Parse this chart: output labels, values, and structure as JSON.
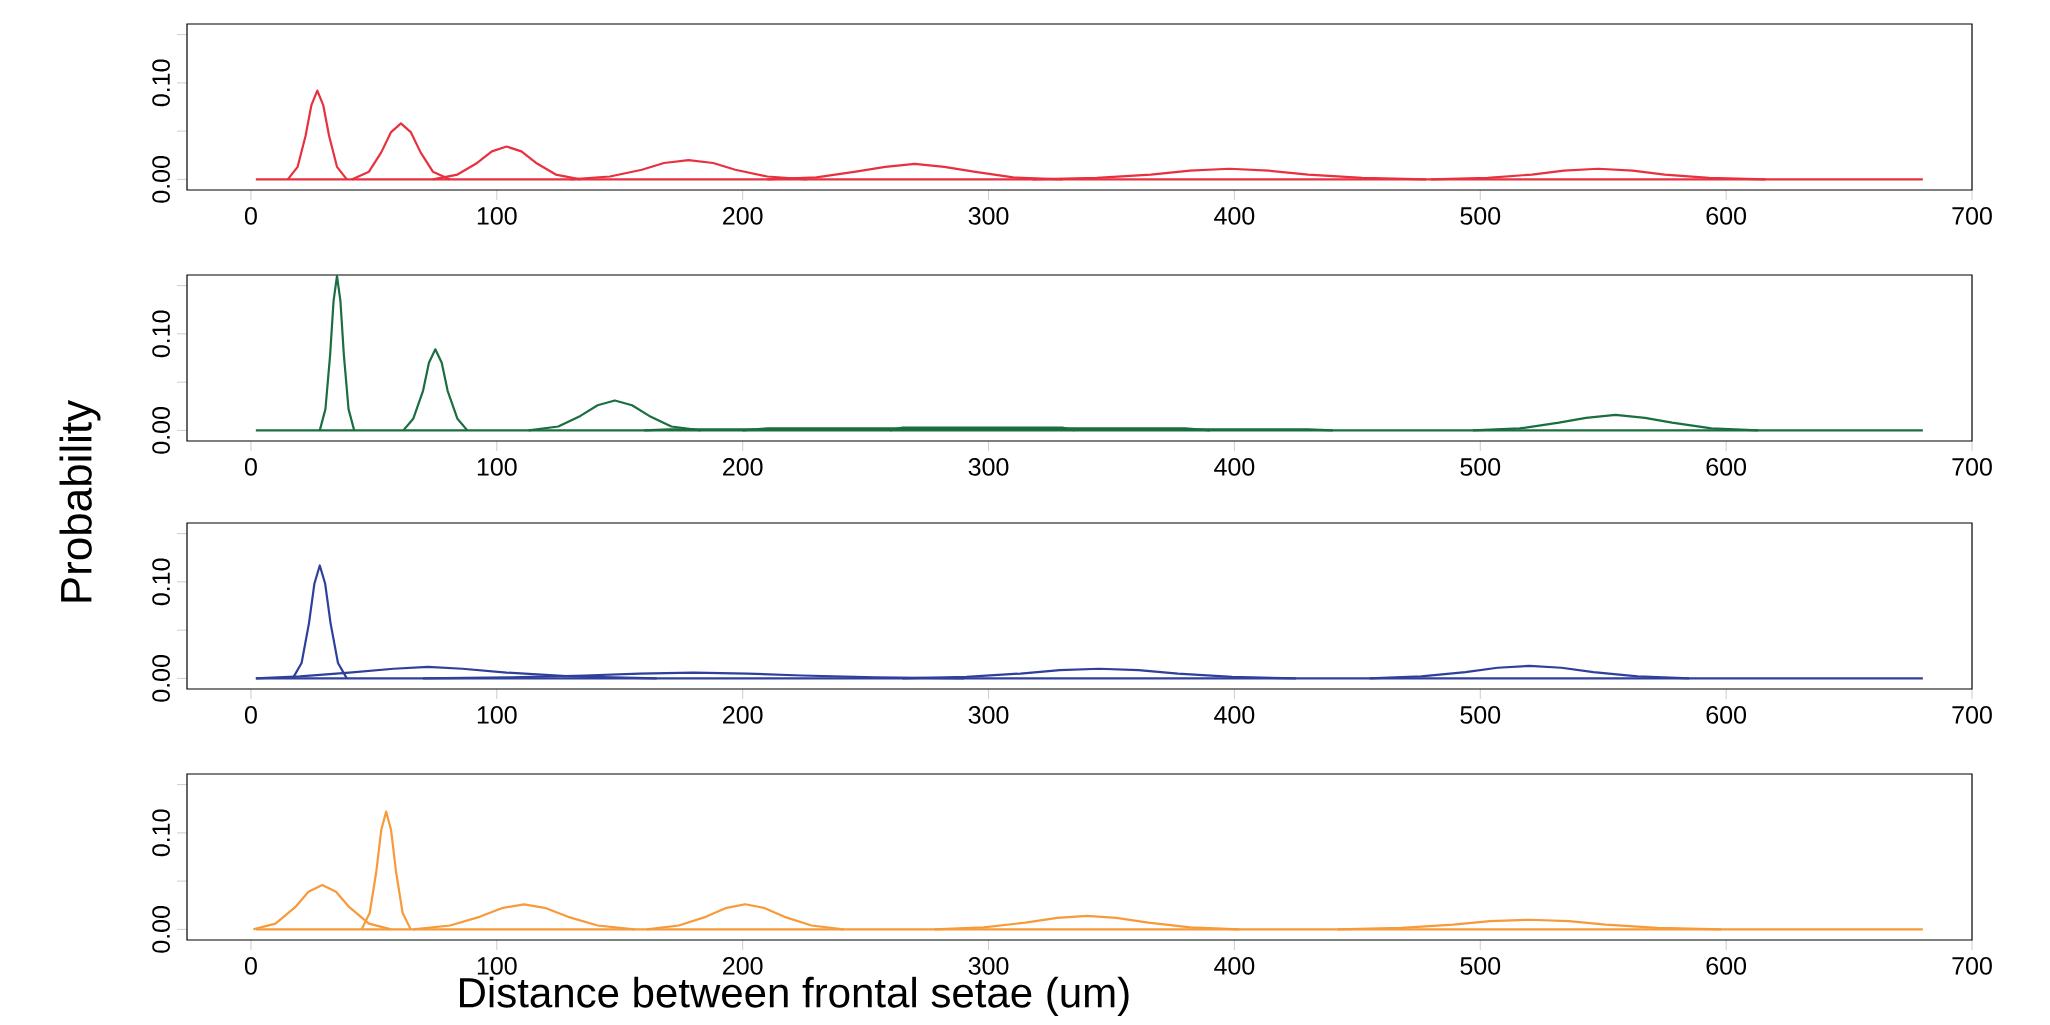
{
  "chart_data": [
    {
      "type": "line",
      "ylabel": "Probability",
      "xlim": [
        -26,
        700
      ],
      "ylim": [
        -0.011,
        0.161
      ],
      "xticks": [
        0,
        100,
        200,
        300,
        400,
        500,
        600,
        700
      ],
      "yticks": [
        {
          "value": 0,
          "label": "0.00"
        },
        {
          "value": 0.05,
          "label": null
        },
        {
          "value": 0.1,
          "label": "0.10"
        },
        {
          "value": 0.15,
          "label": null
        }
      ],
      "series": [
        {
          "color": "#e8303f",
          "x": [
            2,
            680
          ],
          "values": [
            0,
            0
          ]
        },
        {
          "color": "#e8303f",
          "x": [
            15,
            19,
            22.2,
            24.6,
            27,
            29.4,
            31.8,
            35,
            39
          ],
          "values": [
            0,
            0.013,
            0.045,
            0.077,
            0.092,
            0.077,
            0.045,
            0.013,
            0
          ]
        },
        {
          "color": "#e8303f",
          "x": [
            41,
            48,
            53,
            57,
            61,
            65,
            69,
            74,
            81
          ],
          "values": [
            0,
            0.008,
            0.028,
            0.049,
            0.058,
            0.049,
            0.028,
            0.008,
            0
          ]
        },
        {
          "color": "#e8303f",
          "x": [
            74,
            84,
            92,
            98,
            104,
            110,
            116,
            124,
            134
          ],
          "values": [
            0,
            0.005,
            0.017,
            0.029,
            0.034,
            0.029,
            0.017,
            0.005,
            0
          ]
        },
        {
          "color": "#e8303f",
          "x": [
            130,
            146,
            159,
            168,
            178,
            188,
            197,
            210,
            226
          ],
          "values": [
            0,
            0.003,
            0.01,
            0.017,
            0.02,
            0.017,
            0.01,
            0.003,
            0
          ]
        },
        {
          "color": "#e8303f",
          "x": [
            210,
            230,
            246,
            258,
            270,
            282,
            294,
            310,
            330
          ],
          "values": [
            0,
            0.002,
            0.008,
            0.013,
            0.016,
            0.013,
            0.008,
            0.002,
            0
          ]
        },
        {
          "color": "#e8303f",
          "x": [
            318,
            344,
            366,
            382,
            398,
            414,
            430,
            452,
            478
          ],
          "values": [
            0,
            0.0015,
            0.005,
            0.009,
            0.011,
            0.009,
            0.005,
            0.0015,
            0
          ]
        },
        {
          "color": "#e8303f",
          "x": [
            480,
            503,
            521,
            534,
            548,
            562,
            575,
            593,
            616
          ],
          "values": [
            0,
            0.0015,
            0.005,
            0.009,
            0.011,
            0.009,
            0.005,
            0.0015,
            0
          ]
        }
      ]
    },
    {
      "type": "line",
      "xlim": [
        -26,
        700
      ],
      "ylim": [
        -0.011,
        0.161
      ],
      "xticks": [
        0,
        100,
        200,
        300,
        400,
        500,
        600,
        700
      ],
      "yticks": [
        {
          "value": 0,
          "label": "0.00"
        },
        {
          "value": 0.05,
          "label": null
        },
        {
          "value": 0.1,
          "label": "0.10"
        },
        {
          "value": 0.15,
          "label": null
        }
      ],
      "series": [
        {
          "color": "#1a6e3f",
          "x": [
            2,
            680
          ],
          "values": [
            0,
            0
          ]
        },
        {
          "color": "#1a6e3f",
          "x": [
            28,
            30.3,
            32.2,
            33.6,
            35,
            36.4,
            37.8,
            39.7,
            42
          ],
          "values": [
            0,
            0.022,
            0.078,
            0.134,
            0.16,
            0.134,
            0.078,
            0.022,
            0
          ]
        },
        {
          "color": "#1a6e3f",
          "x": [
            62,
            66,
            70,
            72.4,
            75,
            77.6,
            80,
            84,
            88
          ],
          "values": [
            0,
            0.012,
            0.041,
            0.07,
            0.084,
            0.07,
            0.041,
            0.012,
            0
          ]
        },
        {
          "color": "#1a6e3f",
          "x": [
            113,
            125,
            134,
            141,
            148,
            155,
            162,
            171,
            183
          ],
          "values": [
            0,
            0.004,
            0.015,
            0.026,
            0.031,
            0.026,
            0.015,
            0.004,
            0
          ]
        },
        {
          "color": "#1a6e3f",
          "x": [
            160,
            170,
            430,
            440
          ],
          "values": [
            0,
            0.001,
            0.001,
            0
          ]
        },
        {
          "color": "#1a6e3f",
          "x": [
            200,
            210,
            380,
            390
          ],
          "values": [
            0,
            0.002,
            0.002,
            0
          ]
        },
        {
          "color": "#1a6e3f",
          "x": [
            260,
            265,
            330,
            335
          ],
          "values": [
            0,
            0.003,
            0.003,
            0
          ]
        },
        {
          "color": "#1a6e3f",
          "x": [
            497,
            516,
            532,
            543,
            555,
            567,
            578,
            594,
            613
          ],
          "values": [
            0,
            0.002,
            0.008,
            0.013,
            0.016,
            0.013,
            0.008,
            0.002,
            0
          ]
        }
      ]
    },
    {
      "type": "line",
      "xlim": [
        -26,
        700
      ],
      "ylim": [
        -0.011,
        0.161
      ],
      "xticks": [
        0,
        100,
        200,
        300,
        400,
        500,
        600,
        700
      ],
      "yticks": [
        {
          "value": 0,
          "label": "0.00"
        },
        {
          "value": 0.05,
          "label": null
        },
        {
          "value": 0.1,
          "label": "0.10"
        },
        {
          "value": 0.15,
          "label": null
        }
      ],
      "series": [
        {
          "color": "#2e3f9c",
          "x": [
            2,
            680
          ],
          "values": [
            0,
            0
          ]
        },
        {
          "color": "#2e3f9c",
          "x": [
            17,
            20.6,
            23.6,
            25.8,
            28,
            30.2,
            32.4,
            35.4,
            39
          ],
          "values": [
            0,
            0.016,
            0.057,
            0.098,
            0.117,
            0.098,
            0.057,
            0.016,
            0
          ]
        },
        {
          "color": "#2e3f9c",
          "x": [
            2,
            20,
            40,
            58,
            72,
            86,
            104,
            130,
            165
          ],
          "values": [
            0,
            0.002,
            0.006,
            0.01,
            0.012,
            0.01,
            0.006,
            0.002,
            0
          ]
        },
        {
          "color": "#2e3f9c",
          "x": [
            70,
            106,
            136,
            158,
            180,
            202,
            224,
            254,
            290
          ],
          "values": [
            0,
            0.001,
            0.003,
            0.005,
            0.006,
            0.005,
            0.003,
            0.001,
            0
          ]
        },
        {
          "color": "#2e3f9c",
          "x": [
            265,
            291,
            313,
            329,
            345,
            361,
            377,
            399,
            425
          ],
          "values": [
            0,
            0.0015,
            0.005,
            0.0085,
            0.01,
            0.0085,
            0.005,
            0.0015,
            0
          ]
        },
        {
          "color": "#2e3f9c",
          "x": [
            455,
            476,
            494,
            507,
            520,
            533,
            546,
            564,
            585
          ],
          "values": [
            0,
            0.002,
            0.0065,
            0.011,
            0.013,
            0.011,
            0.0065,
            0.002,
            0
          ]
        }
      ]
    },
    {
      "type": "line",
      "xlabel": "Distance between frontal setae (um)",
      "xlim": [
        -26,
        700
      ],
      "ylim": [
        -0.011,
        0.161
      ],
      "xticks": [
        0,
        100,
        200,
        300,
        400,
        500,
        600,
        700
      ],
      "yticks": [
        {
          "value": 0,
          "label": "0.00"
        },
        {
          "value": 0.05,
          "label": null
        },
        {
          "value": 0.1,
          "label": "0.10"
        },
        {
          "value": 0.15,
          "label": null
        }
      ],
      "series": [
        {
          "color": "#f79a3a",
          "x": [
            2,
            680
          ],
          "values": [
            0,
            0
          ]
        },
        {
          "color": "#f79a3a",
          "x": [
            1,
            10,
            18,
            23.4,
            29,
            34.6,
            40,
            48,
            57
          ],
          "values": [
            0,
            0.006,
            0.023,
            0.039,
            0.046,
            0.039,
            0.023,
            0.006,
            0
          ]
        },
        {
          "color": "#f79a3a",
          "x": [
            45,
            48.3,
            51,
            53,
            55,
            57,
            59,
            61.7,
            65
          ],
          "values": [
            0,
            0.017,
            0.06,
            0.103,
            0.122,
            0.103,
            0.06,
            0.017,
            0
          ]
        },
        {
          "color": "#f79a3a",
          "x": [
            66,
            81,
            93,
            102,
            111,
            120,
            129,
            141,
            156
          ],
          "values": [
            0,
            0.004,
            0.013,
            0.022,
            0.026,
            0.022,
            0.013,
            0.004,
            0
          ]
        },
        {
          "color": "#f79a3a",
          "x": [
            161,
            174,
            185,
            193,
            201,
            209,
            217,
            228,
            241
          ],
          "values": [
            0,
            0.004,
            0.013,
            0.022,
            0.026,
            0.022,
            0.013,
            0.004,
            0
          ]
        },
        {
          "color": "#f79a3a",
          "x": [
            278,
            298,
            315,
            328,
            340,
            352,
            365,
            382,
            402
          ],
          "values": [
            0,
            0.002,
            0.007,
            0.012,
            0.014,
            0.012,
            0.007,
            0.002,
            0
          ]
        },
        {
          "color": "#f79a3a",
          "x": [
            442,
            468,
            489,
            504,
            520,
            536,
            551,
            572,
            598
          ],
          "values": [
            0,
            0.0015,
            0.005,
            0.0085,
            0.01,
            0.0085,
            0.005,
            0.0015,
            0
          ]
        }
      ]
    }
  ]
}
